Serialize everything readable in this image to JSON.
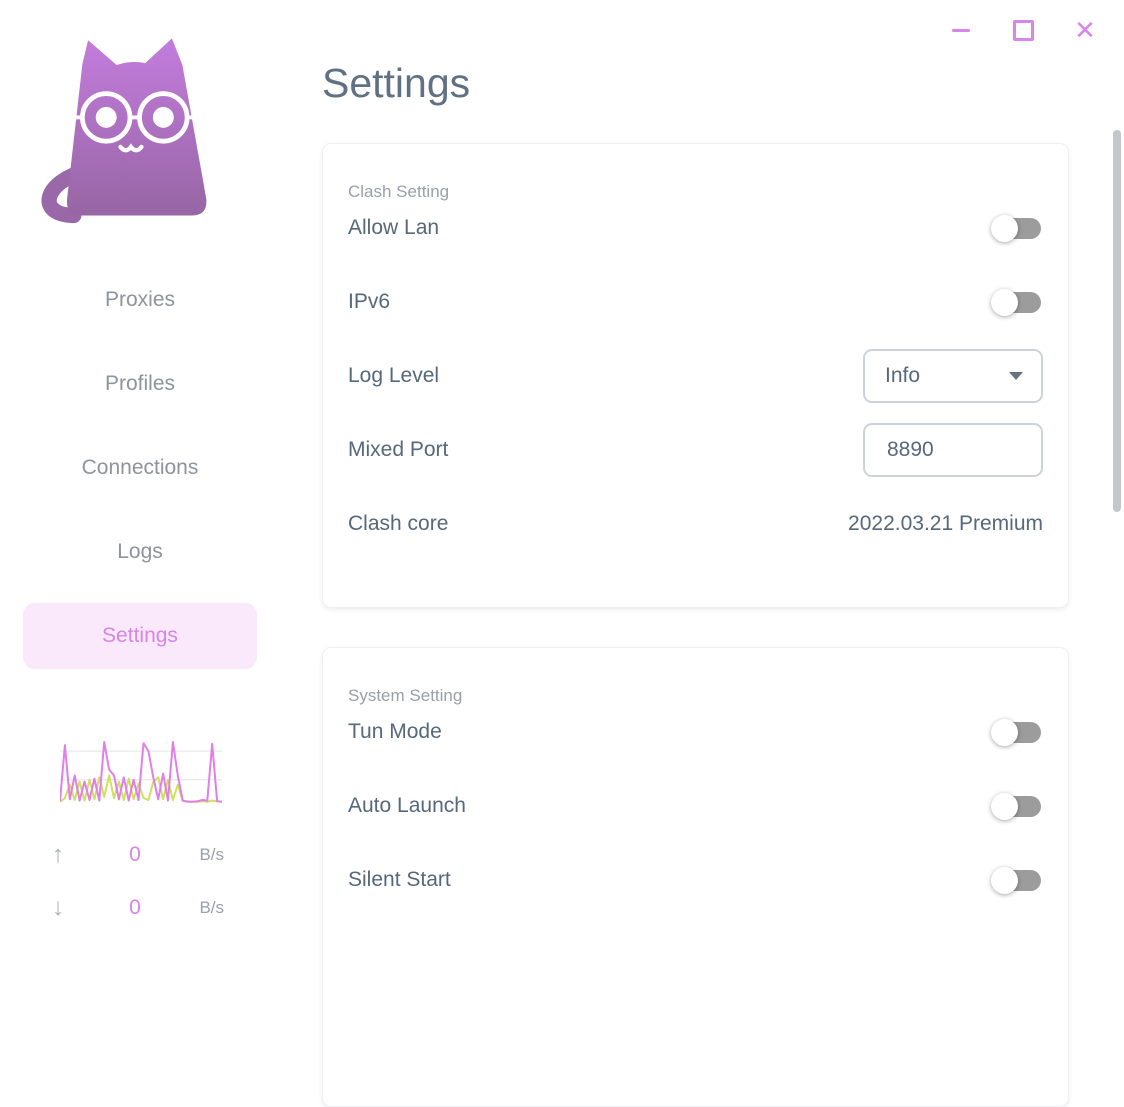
{
  "window": {
    "minimize_label": "minimize",
    "maximize_label": "maximize",
    "close_label": "close",
    "close_glyph": "✕",
    "accent_color": "#d886ea"
  },
  "sidebar": {
    "logo": "clash-cat-logo",
    "items": [
      {
        "label": "Proxies",
        "active": false
      },
      {
        "label": "Profiles",
        "active": false
      },
      {
        "label": "Connections",
        "active": false
      },
      {
        "label": "Logs",
        "active": false
      },
      {
        "label": "Settings",
        "active": true
      }
    ],
    "traffic": {
      "up_arrow": "↑",
      "up_value": "0",
      "up_unit": "B/s",
      "down_arrow": "↓",
      "down_value": "0",
      "down_unit": "B/s"
    }
  },
  "main": {
    "title": "Settings",
    "cards": [
      {
        "title": "Clash Setting",
        "rows": [
          {
            "label": "Allow Lan",
            "control": "toggle",
            "state": "off"
          },
          {
            "label": "IPv6",
            "control": "toggle",
            "state": "off"
          },
          {
            "label": "Log Level",
            "control": "select",
            "value": "Info"
          },
          {
            "label": "Mixed Port",
            "control": "input",
            "value": "8890"
          },
          {
            "label": "Clash core",
            "control": "text",
            "value": "2022.03.21 Premium"
          }
        ]
      },
      {
        "title": "System Setting",
        "rows": [
          {
            "label": "Tun Mode",
            "control": "toggle",
            "state": "off"
          },
          {
            "label": "Auto Launch",
            "control": "toggle",
            "state": "off"
          },
          {
            "label": "Silent Start",
            "control": "toggle",
            "state": "off"
          }
        ]
      }
    ]
  },
  "chart_data": {
    "type": "line",
    "title": "sidebar traffic mini-chart (unlabeled axes, relative scale)",
    "ylim": [
      0,
      100
    ],
    "grid": true,
    "gridline_values": [
      85,
      38
    ],
    "legend": "none",
    "series": [
      {
        "name": "upload",
        "color": "#e07fe8",
        "values": [
          3,
          95,
          6,
          45,
          4,
          35,
          5,
          40,
          4,
          100,
          55,
          45,
          6,
          42,
          4,
          38,
          5,
          98,
          85,
          42,
          6,
          48,
          4,
          100,
          45,
          4,
          2,
          2,
          3,
          5,
          4,
          97,
          3,
          2
        ]
      },
      {
        "name": "download",
        "color": "#cfe05e",
        "values": [
          2,
          8,
          30,
          5,
          35,
          4,
          38,
          6,
          42,
          10,
          45,
          8,
          35,
          5,
          40,
          6,
          32,
          8,
          5,
          35,
          42,
          6,
          38,
          5,
          30,
          4,
          3,
          2,
          2,
          3,
          2,
          4,
          3,
          2
        ]
      }
    ]
  },
  "colors": {
    "accent_purple": "#d783e8",
    "active_nav_bg": "#f9e9fb",
    "title_text": "#5f7183",
    "label_text": "#56687a",
    "muted_text": "#9aa0a8",
    "toggle_track_off": "#9c9c9c",
    "control_border": "#ced3d9"
  }
}
